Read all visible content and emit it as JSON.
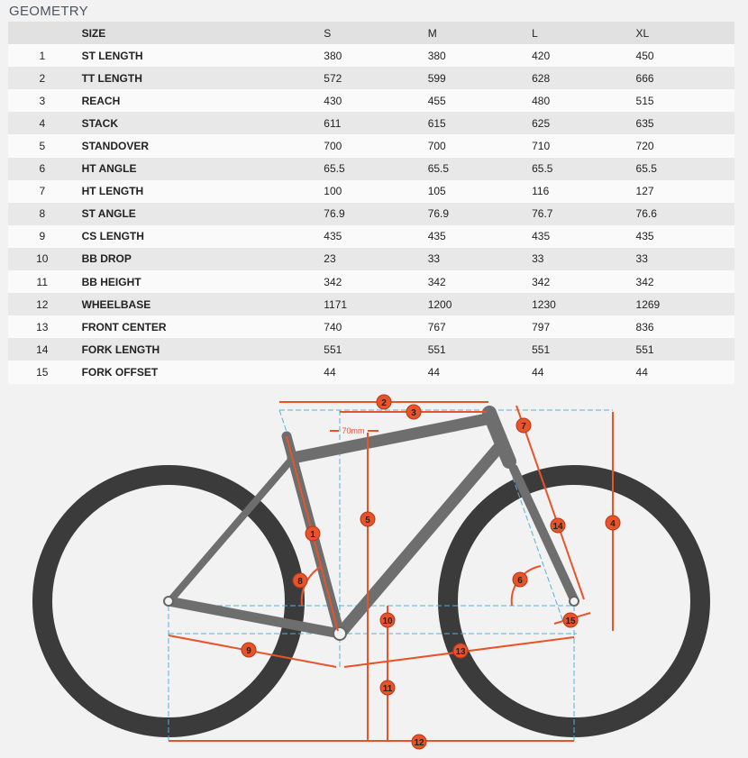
{
  "title": "GEOMETRY",
  "header": {
    "num": "",
    "label": "SIZE",
    "sizes": [
      "S",
      "M",
      "L",
      "XL"
    ]
  },
  "rows": [
    {
      "num": "1",
      "label": "ST LENGTH",
      "values": [
        "380",
        "380",
        "420",
        "450"
      ]
    },
    {
      "num": "2",
      "label": "TT LENGTH",
      "values": [
        "572",
        "599",
        "628",
        "666"
      ]
    },
    {
      "num": "3",
      "label": "REACH",
      "values": [
        "430",
        "455",
        "480",
        "515"
      ]
    },
    {
      "num": "4",
      "label": "STACK",
      "values": [
        "611",
        "615",
        "625",
        "635"
      ]
    },
    {
      "num": "5",
      "label": "STANDOVER",
      "values": [
        "700",
        "700",
        "710",
        "720"
      ]
    },
    {
      "num": "6",
      "label": "HT ANGLE",
      "values": [
        "65.5",
        "65.5",
        "65.5",
        "65.5"
      ]
    },
    {
      "num": "7",
      "label": "HT LENGTH",
      "values": [
        "100",
        "105",
        "116",
        "127"
      ]
    },
    {
      "num": "8",
      "label": "ST ANGLE",
      "values": [
        "76.9",
        "76.9",
        "76.7",
        "76.6"
      ]
    },
    {
      "num": "9",
      "label": "CS LENGTH",
      "values": [
        "435",
        "435",
        "435",
        "435"
      ]
    },
    {
      "num": "10",
      "label": "BB DROP",
      "values": [
        "23",
        "33",
        "33",
        "33"
      ]
    },
    {
      "num": "11",
      "label": "BB HEIGHT",
      "values": [
        "342",
        "342",
        "342",
        "342"
      ]
    },
    {
      "num": "12",
      "label": "WHEELBASE",
      "values": [
        "1171",
        "1200",
        "1230",
        "1269"
      ]
    },
    {
      "num": "13",
      "label": "FRONT CENTER",
      "values": [
        "740",
        "767",
        "797",
        "836"
      ]
    },
    {
      "num": "14",
      "label": "FORK LENGTH",
      "values": [
        "551",
        "551",
        "551",
        "551"
      ]
    },
    {
      "num": "15",
      "label": "FORK OFFSET",
      "values": [
        "44",
        "44",
        "44",
        "44"
      ]
    }
  ],
  "diagram": {
    "offset_label": "70mm",
    "accent": "#e8542a",
    "guide": "#4fb3e0",
    "markers": [
      "1",
      "2",
      "3",
      "4",
      "5",
      "6",
      "7",
      "8",
      "9",
      "10",
      "11",
      "12",
      "13",
      "14",
      "15"
    ]
  }
}
